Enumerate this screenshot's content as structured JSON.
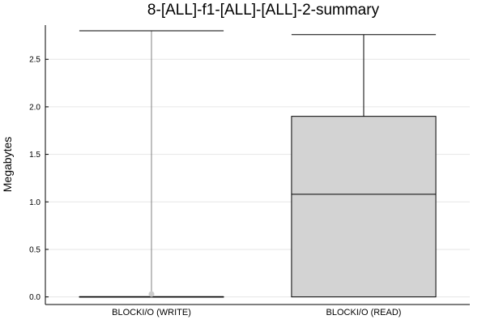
{
  "chart_data": {
    "type": "box",
    "title": "8-[ALL]-f1-[ALL]-[ALL]-2-summary",
    "xlabel": "",
    "ylabel": "Megabytes",
    "ylim": [
      -0.08,
      2.86
    ],
    "yticks": [
      0.0,
      0.5,
      1.0,
      1.5,
      2.0,
      2.5
    ],
    "ytick_labels": [
      "0.0",
      "0.5",
      "1.0",
      "1.5",
      "2.0",
      "2.5"
    ],
    "grid": true,
    "legend": "none",
    "categories": [
      "BLOCKI/O (WRITE)",
      "BLOCKI/O (READ)"
    ],
    "boxes": [
      {
        "category": "BLOCKI/O (WRITE)",
        "whisker_low": 0.0,
        "q1": 0.0,
        "median": 0.0,
        "q3": 0.0,
        "whisker_high": 2.8,
        "outliers": [
          0.03
        ],
        "fill": "#d3d3d3",
        "whisker_color": "#808080"
      },
      {
        "category": "BLOCKI/O (READ)",
        "whisker_low": 0.0,
        "q1": 0.0,
        "median": 1.08,
        "q3": 1.9,
        "whisker_high": 2.76,
        "outliers": [],
        "fill": "#d3d3d3",
        "whisker_color": "#000000"
      }
    ]
  }
}
